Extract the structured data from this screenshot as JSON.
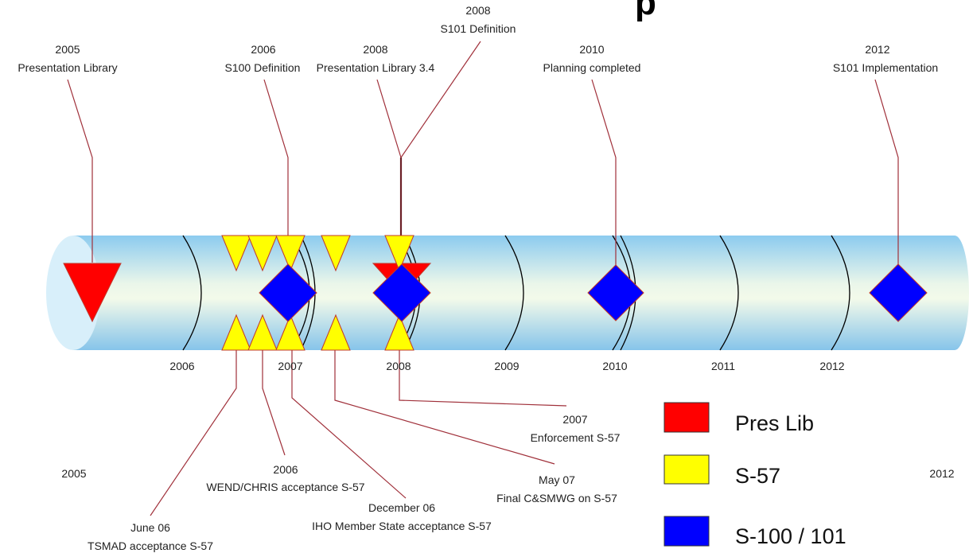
{
  "title_fragment": "p",
  "timeline": {
    "year_labels": [
      "2006",
      "2007",
      "2008",
      "2009",
      "2010",
      "2011",
      "2012"
    ],
    "start_label": "2005",
    "end_label": "2012"
  },
  "events_above": [
    {
      "year": "2005",
      "text": "Presentation Library",
      "marker": "pres-lib"
    },
    {
      "year": "2006",
      "text": "S100 Definition",
      "marker": "s-100-101"
    },
    {
      "year": "2008",
      "text": "Presentation Library 3.4",
      "marker": "pres-lib"
    },
    {
      "year": "2008",
      "text": "S101 Definition",
      "marker": "s-57"
    },
    {
      "year": "2010",
      "text": "Planning completed",
      "marker": "s-100-101"
    },
    {
      "year": "2012",
      "text": "S101 Implementation",
      "marker": "s-100-101"
    }
  ],
  "events_below": [
    {
      "year": "June 06",
      "text": "TSMAD acceptance S-57"
    },
    {
      "year": "2006",
      "text": "WEND/CHRIS acceptance S-57"
    },
    {
      "year": "December 06",
      "text": "IHO Member State acceptance S-57"
    },
    {
      "year": "May 07",
      "text": "Final C&SMWG on S-57"
    },
    {
      "year": "2007",
      "text": "Enforcement S-57"
    }
  ],
  "legend": {
    "items": [
      {
        "label": "Pres Lib",
        "color": "#ff0000"
      },
      {
        "label": "S-57",
        "color": "#ffff00"
      },
      {
        "label": "S-100 / 101",
        "color": "#0000ff"
      }
    ]
  },
  "colors": {
    "leader_line": "#a0303a",
    "marker_border": "#c0392b",
    "ring": "#000000",
    "tube_light": "#eef8e8",
    "tube_dark": "#8cc8ec"
  }
}
